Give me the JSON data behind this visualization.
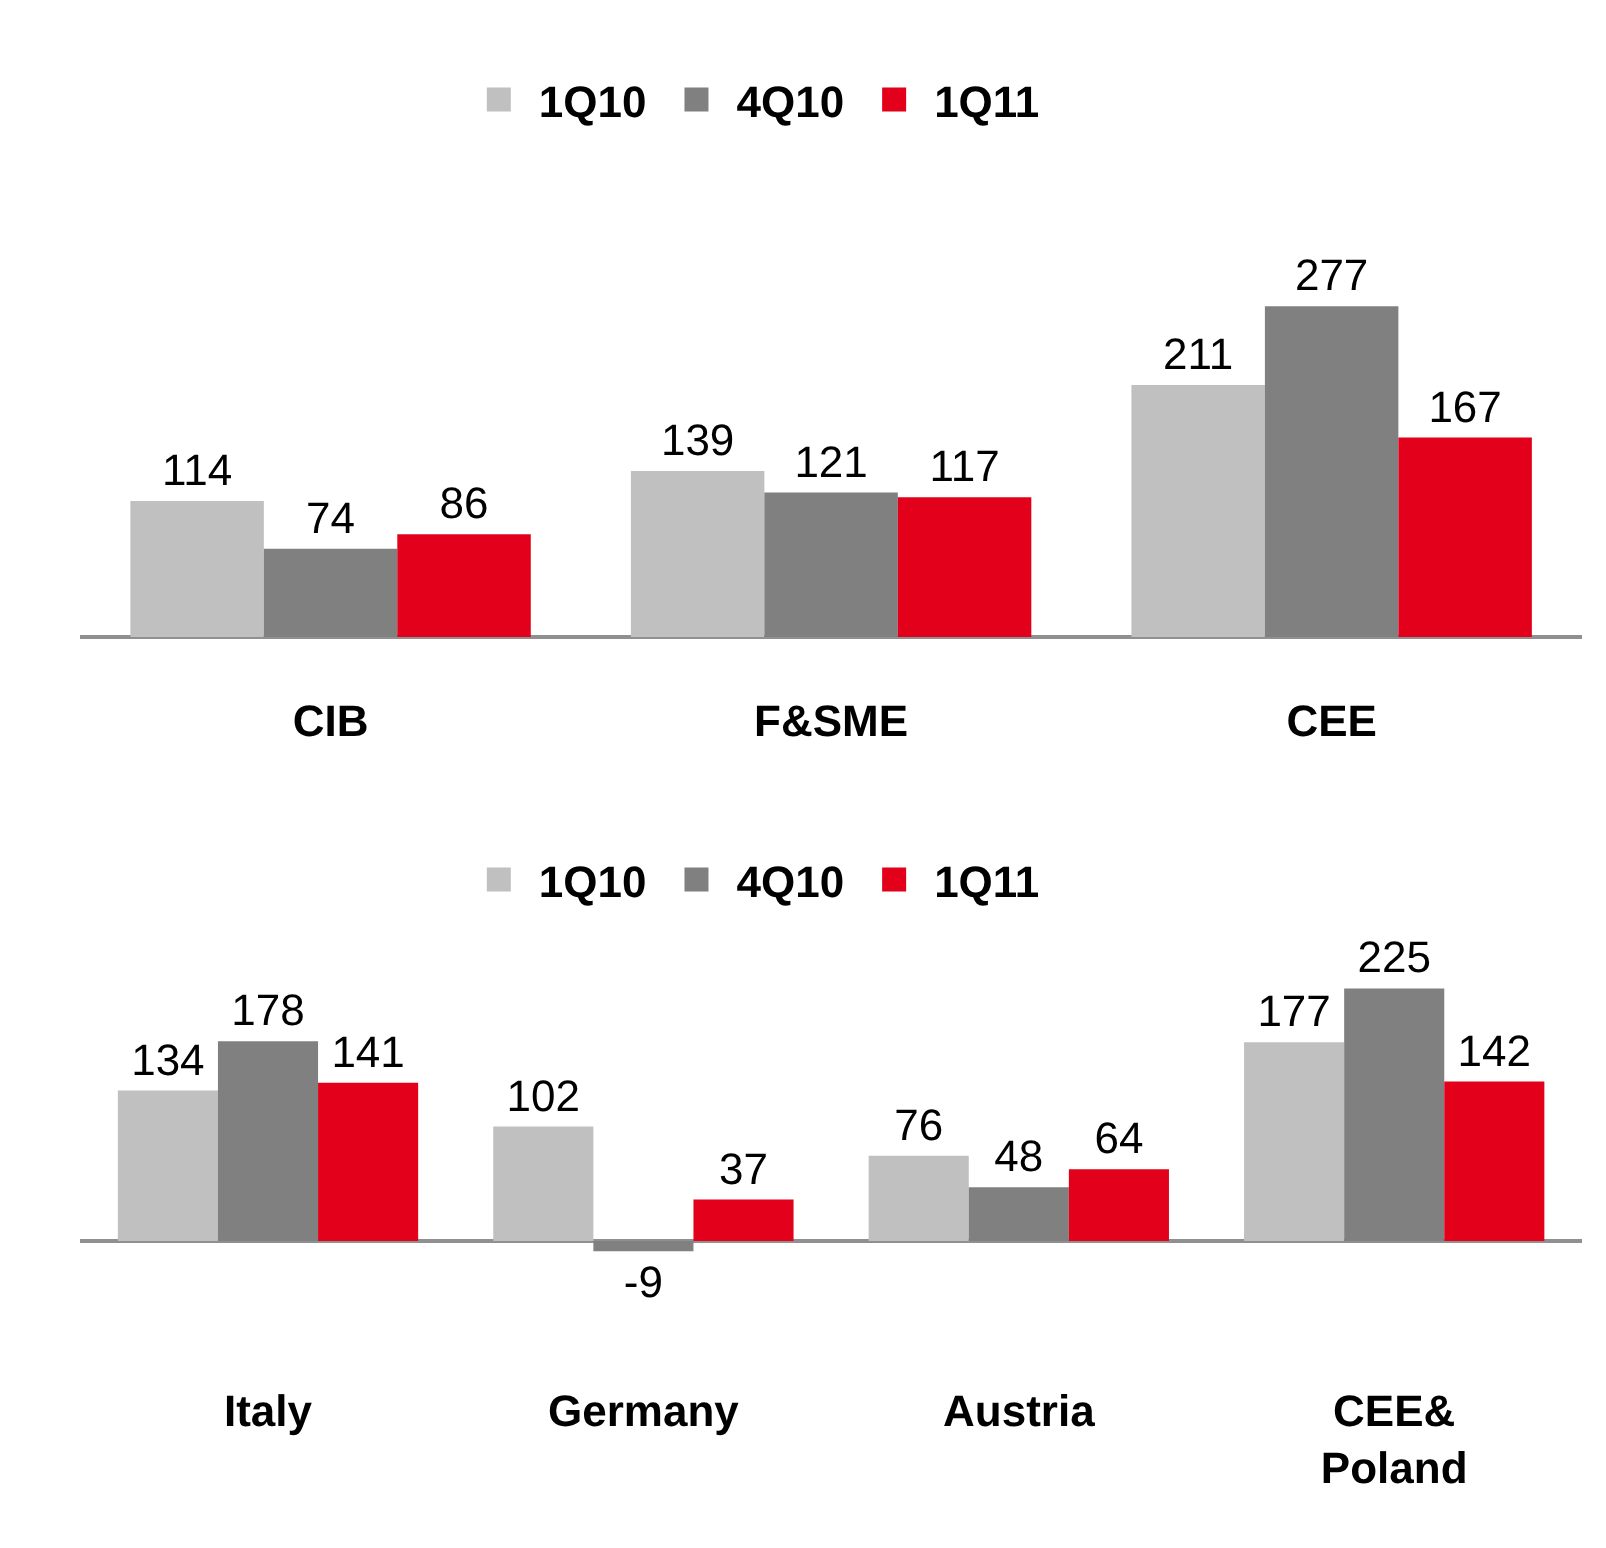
{
  "chart_data": [
    {
      "type": "bar",
      "categories": [
        "CIB",
        "F&SME",
        "CEE"
      ],
      "series": [
        {
          "name": "1Q10",
          "color": "#c0c0c0",
          "values": [
            114,
            139,
            211
          ]
        },
        {
          "name": "4Q10",
          "color": "#808080",
          "values": [
            74,
            121,
            277
          ]
        },
        {
          "name": "1Q11",
          "color": "#e2001a",
          "values": [
            86,
            117,
            167
          ]
        }
      ],
      "data_labels": true,
      "legend": "top"
    },
    {
      "type": "bar",
      "categories": [
        "Italy",
        "Germany",
        "Austria",
        "CEE&\nPoland"
      ],
      "series": [
        {
          "name": "1Q10",
          "color": "#c0c0c0",
          "values": [
            134,
            102,
            76,
            177
          ]
        },
        {
          "name": "4Q10",
          "color": "#808080",
          "values": [
            178,
            -9,
            48,
            225
          ]
        },
        {
          "name": "1Q11",
          "color": "#e2001a",
          "values": [
            141,
            37,
            64,
            142
          ]
        }
      ],
      "data_labels": true,
      "legend": "top"
    }
  ]
}
